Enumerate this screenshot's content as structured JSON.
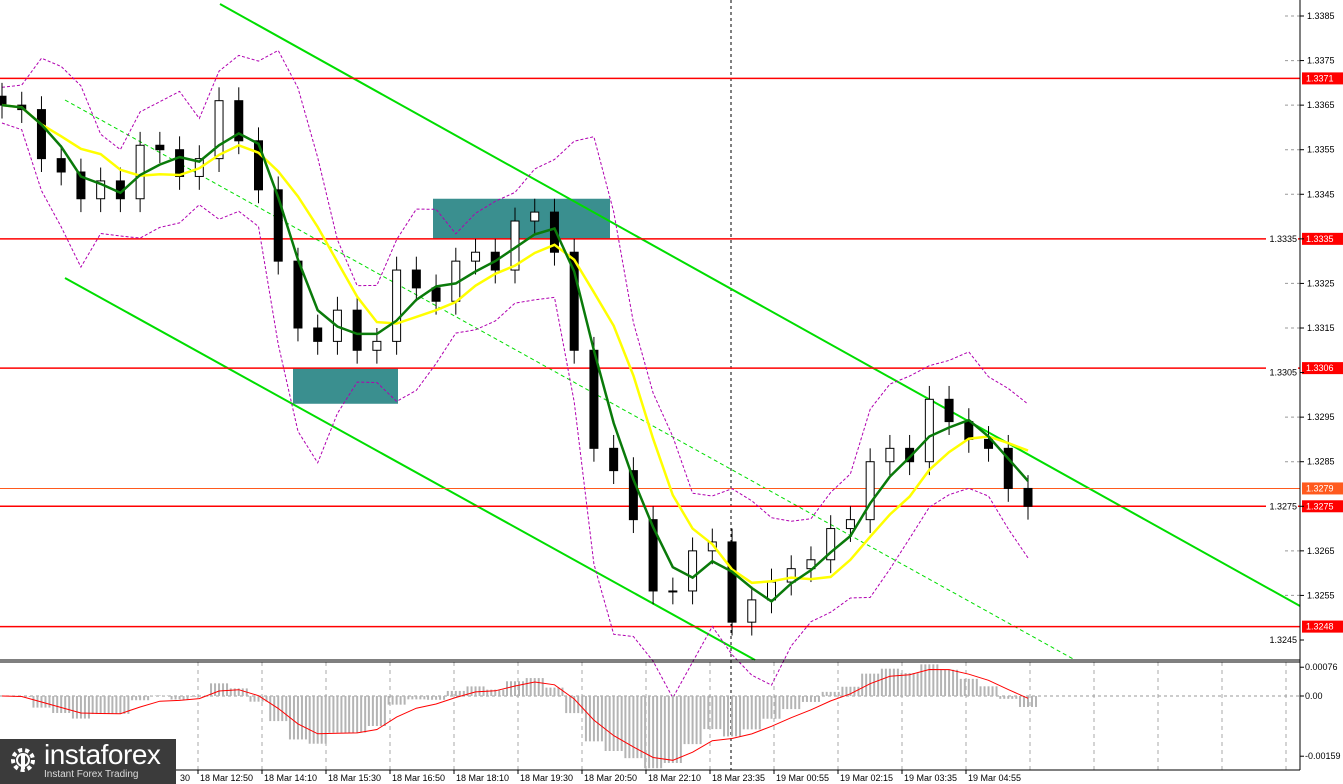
{
  "chart_data": {
    "type": "candlestick",
    "price_axis": {
      "ticks": [
        "1.3385",
        "1.3375",
        "1.3365",
        "1.3355",
        "1.3345",
        "1.3335",
        "1.3325",
        "1.3315",
        "1.3305",
        "1.3295",
        "1.3285",
        "1.3275",
        "1.3265",
        "1.3255",
        "1.3245"
      ],
      "ylim": [
        1.3245,
        1.3385
      ]
    },
    "time_axis": {
      "ticks": [
        "30",
        "18 Mar 12:50",
        "18 Mar 14:10",
        "18 Mar 15:30",
        "18 Mar 16:50",
        "18 Mar 18:10",
        "18 Mar 19:30",
        "18 Mar 20:50",
        "18 Mar 22:10",
        "18 Mar 23:35",
        "19 Mar 00:55",
        "19 Mar 02:15",
        "19 Mar 03:35",
        "19 Mar 04:55"
      ]
    },
    "closes": [
      1.3365,
      1.3364,
      1.3353,
      1.335,
      1.3344,
      1.3348,
      1.3344,
      1.3356,
      1.3355,
      1.3349,
      1.3353,
      1.3366,
      1.3357,
      1.3346,
      1.333,
      1.3315,
      1.3312,
      1.3319,
      1.331,
      1.3312,
      1.3328,
      1.3324,
      1.3321,
      1.333,
      1.3332,
      1.3328,
      1.3339,
      1.3341,
      1.3332,
      1.331,
      1.3288,
      1.3283,
      1.3272,
      1.3256,
      1.3256,
      1.3265,
      1.3267,
      1.3249,
      1.3254,
      1.3258,
      1.3261,
      1.3263,
      1.327,
      1.3272,
      1.3285,
      1.3288,
      1.3285,
      1.3299,
      1.3294,
      1.329,
      1.3288,
      1.3279,
      1.3275
    ],
    "levels": [
      {
        "value": 1.3371,
        "label": "1.3371",
        "color": "#ff0000"
      },
      {
        "value": 1.3335,
        "label": "1.3335",
        "color": "#ff0000"
      },
      {
        "value": 1.3306,
        "label": "1.3306",
        "color": "#ff0000"
      },
      {
        "value": 1.3279,
        "label": "1.3279",
        "color": "#ff5a1e"
      },
      {
        "value": 1.3275,
        "label": "1.3275",
        "color": "#ff0000"
      },
      {
        "value": 1.3248,
        "label": "1.3248",
        "color": "#ff0000"
      }
    ],
    "indicators": {
      "fast_ma_color": "#0a7a0a",
      "slow_ma_color": "#ffff00",
      "bands_color": "#b000b0",
      "channel_color": "#00dd00",
      "zone_color": "#3a8f8f"
    },
    "macd_axis": {
      "ticks": [
        "0.00076",
        "0.00",
        "-0.00159"
      ],
      "ylim": [
        -0.00159,
        0.00076
      ]
    },
    "colors": {
      "up": "#000000",
      "down": "#000000",
      "signal": "#ff0000",
      "histogram": "#b4b4b4"
    }
  },
  "logo": {
    "name": "instaforex",
    "tagline": "Instant Forex Trading"
  }
}
